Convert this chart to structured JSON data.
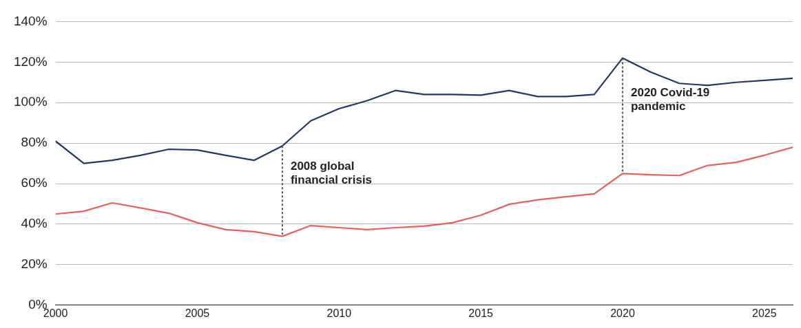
{
  "chart_data": {
    "type": "line",
    "x": [
      2000,
      2001,
      2002,
      2003,
      2004,
      2005,
      2006,
      2007,
      2008,
      2009,
      2010,
      2011,
      2012,
      2013,
      2014,
      2015,
      2016,
      2017,
      2018,
      2019,
      2020,
      2021,
      2022,
      2023,
      2024,
      2025,
      2026
    ],
    "series": [
      {
        "color": "#1f3864",
        "values": [
          81,
          70,
          71.5,
          74,
          77,
          76.6,
          74,
          71.5,
          78.6,
          91,
          97,
          101,
          106,
          104,
          104,
          103.7,
          106,
          103,
          103,
          104,
          122,
          115,
          109.5,
          108.5,
          110,
          111,
          112
        ]
      },
      {
        "color": "#e8605a",
        "values": [
          45,
          46.4,
          50.5,
          48,
          45.4,
          40.7,
          37.3,
          36.3,
          34,
          39.3,
          38.3,
          37.3,
          38.3,
          39,
          40.7,
          44.4,
          49.8,
          52,
          53.5,
          55,
          65,
          64.4,
          64,
          69,
          70.5,
          74,
          78
        ]
      }
    ],
    "xlim": [
      2000,
      2026
    ],
    "xticks": [
      2000,
      2005,
      2010,
      2015,
      2020,
      2025
    ],
    "ylim": [
      0,
      140
    ],
    "yticks": [
      {
        "value": 0,
        "label": "0%"
      },
      {
        "value": 20,
        "label": "20%"
      },
      {
        "value": 40,
        "label": "40%"
      },
      {
        "value": 60,
        "label": "60%"
      },
      {
        "value": 80,
        "label": "80%"
      },
      {
        "value": 100,
        "label": "100%"
      },
      {
        "value": 120,
        "label": "120%"
      },
      {
        "value": 140,
        "label": "140%"
      }
    ],
    "grid": "y",
    "legend": false,
    "marker": "none",
    "line_style": "solid",
    "ref_lines": [
      {
        "axis": "x",
        "value": 2008,
        "label": "2008 global financial crisis",
        "line_style": "dotted",
        "color": "#555555"
      },
      {
        "axis": "x",
        "value": 2020,
        "label": "2020 Covid-19 pandemic",
        "line_style": "dotted",
        "color": "#555555"
      }
    ]
  }
}
